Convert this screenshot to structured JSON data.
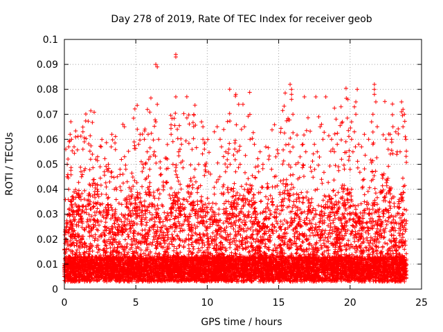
{
  "chart_data": {
    "type": "scatter",
    "title": "Day 278 of 2019, Rate Of TEC Index for receiver geob",
    "xlabel": "GPS time / hours",
    "ylabel": "ROTI / TECUs",
    "xlim": [
      0,
      25
    ],
    "ylim": [
      0,
      0.1
    ],
    "xticks": [
      0,
      5,
      10,
      15,
      20,
      25
    ],
    "xtick_labels": [
      "0",
      "5",
      "10",
      "15",
      "20",
      "25"
    ],
    "yticks": [
      0,
      0.01,
      0.02,
      0.03,
      0.04,
      0.05,
      0.06,
      0.07,
      0.08,
      0.09,
      0.1
    ],
    "ytick_labels": [
      "0",
      "0.01",
      "0.02",
      "0.03",
      "0.04",
      "0.05",
      "0.06",
      "0.07",
      "0.08",
      "0.09",
      "0.1"
    ],
    "grid": true,
    "marker": "+",
    "color": "#ff0000",
    "series": [
      {
        "name": "ROTI",
        "points": [
          [
            0.1,
            0.056
          ],
          [
            0.3,
            0.057
          ],
          [
            0.4,
            0.062
          ],
          [
            0.5,
            0.06
          ],
          [
            0.2,
            0.045
          ],
          [
            0.3,
            0.04
          ],
          [
            0.5,
            0.035
          ],
          [
            0.2,
            0.05
          ],
          [
            1.3,
            0.063
          ],
          [
            1.4,
            0.059
          ],
          [
            1.3,
            0.056
          ],
          [
            1.2,
            0.045
          ],
          [
            1.4,
            0.036
          ],
          [
            1.0,
            0.03
          ],
          [
            2.2,
            0.052
          ],
          [
            2.5,
            0.049
          ],
          [
            2.8,
            0.047
          ],
          [
            2.3,
            0.04
          ],
          [
            2.6,
            0.038
          ],
          [
            3.3,
            0.045
          ],
          [
            3.7,
            0.045
          ],
          [
            3.5,
            0.04
          ],
          [
            3.9,
            0.041
          ],
          [
            4.1,
            0.066
          ],
          [
            4.2,
            0.065
          ],
          [
            4.3,
            0.048
          ],
          [
            4.1,
            0.046
          ],
          [
            4.4,
            0.043
          ],
          [
            5.1,
            0.064
          ],
          [
            5.3,
            0.062
          ],
          [
            5.6,
            0.06
          ],
          [
            5.8,
            0.055
          ],
          [
            5.2,
            0.058
          ],
          [
            5.5,
            0.05
          ],
          [
            5.9,
            0.052
          ],
          [
            6.4,
            0.09
          ],
          [
            6.5,
            0.089
          ],
          [
            6.5,
            0.074
          ],
          [
            6.4,
            0.067
          ],
          [
            6.6,
            0.06
          ],
          [
            6.3,
            0.055
          ],
          [
            6.7,
            0.051
          ],
          [
            7.8,
            0.094
          ],
          [
            7.8,
            0.093
          ],
          [
            7.8,
            0.077
          ],
          [
            7.9,
            0.064
          ],
          [
            8.2,
            0.058
          ],
          [
            8.0,
            0.055
          ],
          [
            7.6,
            0.05
          ],
          [
            9.6,
            0.067
          ],
          [
            9.7,
            0.065
          ],
          [
            9.7,
            0.06
          ],
          [
            9.8,
            0.056
          ],
          [
            9.4,
            0.05
          ],
          [
            9.9,
            0.047
          ],
          [
            10.5,
            0.063
          ],
          [
            10.7,
            0.065
          ],
          [
            10.9,
            0.06
          ],
          [
            11.0,
            0.057
          ],
          [
            11.3,
            0.055
          ],
          [
            11.6,
            0.05
          ],
          [
            12.0,
            0.078
          ],
          [
            12.2,
            0.074
          ],
          [
            12.5,
            0.074
          ],
          [
            12.6,
            0.065
          ],
          [
            12.4,
            0.064
          ],
          [
            12.1,
            0.055
          ],
          [
            12.3,
            0.05
          ],
          [
            13.0,
            0.06
          ],
          [
            13.3,
            0.058
          ],
          [
            13.7,
            0.055
          ],
          [
            13.9,
            0.05
          ],
          [
            13.6,
            0.047
          ],
          [
            14.1,
            0.057
          ],
          [
            14.3,
            0.052
          ],
          [
            14.8,
            0.053
          ],
          [
            14.5,
            0.048
          ],
          [
            14.7,
            0.045
          ],
          [
            15.8,
            0.082
          ],
          [
            15.9,
            0.08
          ],
          [
            15.9,
            0.078
          ],
          [
            15.9,
            0.076
          ],
          [
            16.0,
            0.07
          ],
          [
            15.7,
            0.058
          ],
          [
            15.8,
            0.055
          ],
          [
            16.2,
            0.05
          ],
          [
            16.8,
            0.077
          ],
          [
            16.7,
            0.058
          ],
          [
            16.9,
            0.055
          ],
          [
            16.5,
            0.053
          ],
          [
            17.6,
            0.077
          ],
          [
            17.8,
            0.069
          ],
          [
            18.0,
            0.066
          ],
          [
            17.9,
            0.065
          ],
          [
            18.1,
            0.06
          ],
          [
            17.5,
            0.058
          ],
          [
            17.7,
            0.055
          ],
          [
            18.3,
            0.077
          ],
          [
            18.7,
            0.06
          ],
          [
            19.1,
            0.058
          ],
          [
            18.9,
            0.055
          ],
          [
            19.4,
            0.052
          ],
          [
            20.1,
            0.067
          ],
          [
            20.3,
            0.063
          ],
          [
            20.1,
            0.06
          ],
          [
            20.6,
            0.058
          ],
          [
            20.2,
            0.055
          ],
          [
            20.5,
            0.08
          ],
          [
            20.4,
            0.075
          ],
          [
            20.3,
            0.073
          ],
          [
            20.4,
            0.07
          ],
          [
            21.0,
            0.062
          ],
          [
            20.8,
            0.057
          ],
          [
            21.7,
            0.082
          ],
          [
            21.7,
            0.08
          ],
          [
            21.7,
            0.078
          ],
          [
            21.8,
            0.075
          ],
          [
            21.6,
            0.07
          ],
          [
            21.5,
            0.067
          ],
          [
            21.9,
            0.065
          ],
          [
            21.3,
            0.06
          ],
          [
            21.6,
            0.058
          ],
          [
            22.5,
            0.06
          ],
          [
            22.8,
            0.062
          ],
          [
            23.0,
            0.065
          ],
          [
            22.9,
            0.06
          ],
          [
            23.2,
            0.063
          ],
          [
            23.3,
            0.055
          ],
          [
            23.6,
            0.075
          ],
          [
            23.7,
            0.072
          ],
          [
            23.6,
            0.071
          ],
          [
            23.8,
            0.07
          ],
          [
            23.7,
            0.065
          ],
          [
            23.9,
            0.06
          ],
          [
            23.5,
            0.055
          ],
          [
            0.1,
            0.015
          ],
          [
            0.2,
            0.012
          ],
          [
            0.5,
            0.018
          ],
          [
            0.8,
            0.022
          ],
          [
            0.6,
            0.01
          ],
          [
            1.0,
            0.017
          ],
          [
            1.5,
            0.013
          ],
          [
            1.7,
            0.025
          ],
          [
            2.0,
            0.021
          ],
          [
            2.4,
            0.016
          ],
          [
            2.7,
            0.012
          ],
          [
            3.0,
            0.019
          ],
          [
            3.3,
            0.024
          ],
          [
            3.6,
            0.015
          ],
          [
            4.0,
            0.03
          ],
          [
            4.4,
            0.026
          ],
          [
            4.7,
            0.018
          ],
          [
            5.0,
            0.034
          ],
          [
            5.4,
            0.028
          ],
          [
            5.7,
            0.022
          ],
          [
            6.0,
            0.038
          ],
          [
            6.3,
            0.033
          ],
          [
            6.6,
            0.04
          ],
          [
            6.9,
            0.027
          ],
          [
            7.2,
            0.016
          ],
          [
            7.5,
            0.019
          ],
          [
            7.8,
            0.035
          ],
          [
            8.1,
            0.042
          ],
          [
            8.4,
            0.03
          ],
          [
            8.7,
            0.02
          ],
          [
            9.0,
            0.017
          ],
          [
            9.3,
            0.025
          ],
          [
            9.6,
            0.037
          ],
          [
            9.9,
            0.031
          ],
          [
            10.2,
            0.026
          ],
          [
            10.5,
            0.038
          ],
          [
            10.8,
            0.03
          ],
          [
            11.1,
            0.041
          ],
          [
            11.4,
            0.027
          ],
          [
            11.7,
            0.033
          ],
          [
            12.0,
            0.036
          ],
          [
            12.3,
            0.028
          ],
          [
            12.6,
            0.02
          ],
          [
            12.9,
            0.029
          ],
          [
            13.2,
            0.034
          ],
          [
            13.5,
            0.03
          ],
          [
            13.8,
            0.024
          ],
          [
            14.1,
            0.037
          ],
          [
            14.4,
            0.03
          ],
          [
            14.7,
            0.025
          ],
          [
            15.0,
            0.021
          ],
          [
            15.3,
            0.026
          ],
          [
            15.6,
            0.038
          ],
          [
            15.9,
            0.042
          ],
          [
            16.2,
            0.033
          ],
          [
            16.5,
            0.025
          ],
          [
            16.8,
            0.031
          ],
          [
            17.1,
            0.036
          ],
          [
            17.4,
            0.028
          ],
          [
            17.7,
            0.04
          ],
          [
            18.0,
            0.044
          ],
          [
            18.3,
            0.037
          ],
          [
            18.6,
            0.03
          ],
          [
            18.9,
            0.034
          ],
          [
            19.2,
            0.028
          ],
          [
            19.5,
            0.024
          ],
          [
            19.8,
            0.036
          ],
          [
            20.1,
            0.04
          ],
          [
            20.4,
            0.032
          ],
          [
            20.7,
            0.027
          ],
          [
            21.0,
            0.035
          ],
          [
            21.3,
            0.03
          ],
          [
            21.6,
            0.044
          ],
          [
            21.9,
            0.034
          ],
          [
            22.2,
            0.027
          ],
          [
            22.5,
            0.032
          ],
          [
            22.8,
            0.029
          ],
          [
            23.1,
            0.033
          ],
          [
            23.4,
            0.035
          ],
          [
            23.7,
            0.03
          ],
          [
            23.9,
            0.024
          ],
          [
            0.3,
            0.008
          ],
          [
            1.2,
            0.009
          ],
          [
            2.1,
            0.007
          ],
          [
            3.1,
            0.01
          ],
          [
            4.2,
            0.008
          ],
          [
            5.1,
            0.011
          ],
          [
            6.1,
            0.009
          ],
          [
            7.0,
            0.012
          ],
          [
            8.0,
            0.01
          ],
          [
            9.0,
            0.008
          ],
          [
            10.0,
            0.011
          ],
          [
            11.0,
            0.009
          ],
          [
            12.0,
            0.01
          ],
          [
            13.0,
            0.008
          ],
          [
            14.0,
            0.011
          ],
          [
            15.0,
            0.007
          ],
          [
            16.0,
            0.009
          ],
          [
            17.0,
            0.012
          ],
          [
            18.0,
            0.01
          ],
          [
            19.0,
            0.008
          ],
          [
            20.0,
            0.011
          ],
          [
            21.0,
            0.009
          ],
          [
            22.0,
            0.012
          ],
          [
            23.0,
            0.01
          ],
          [
            23.9,
            0.007
          ]
        ]
      }
    ]
  }
}
